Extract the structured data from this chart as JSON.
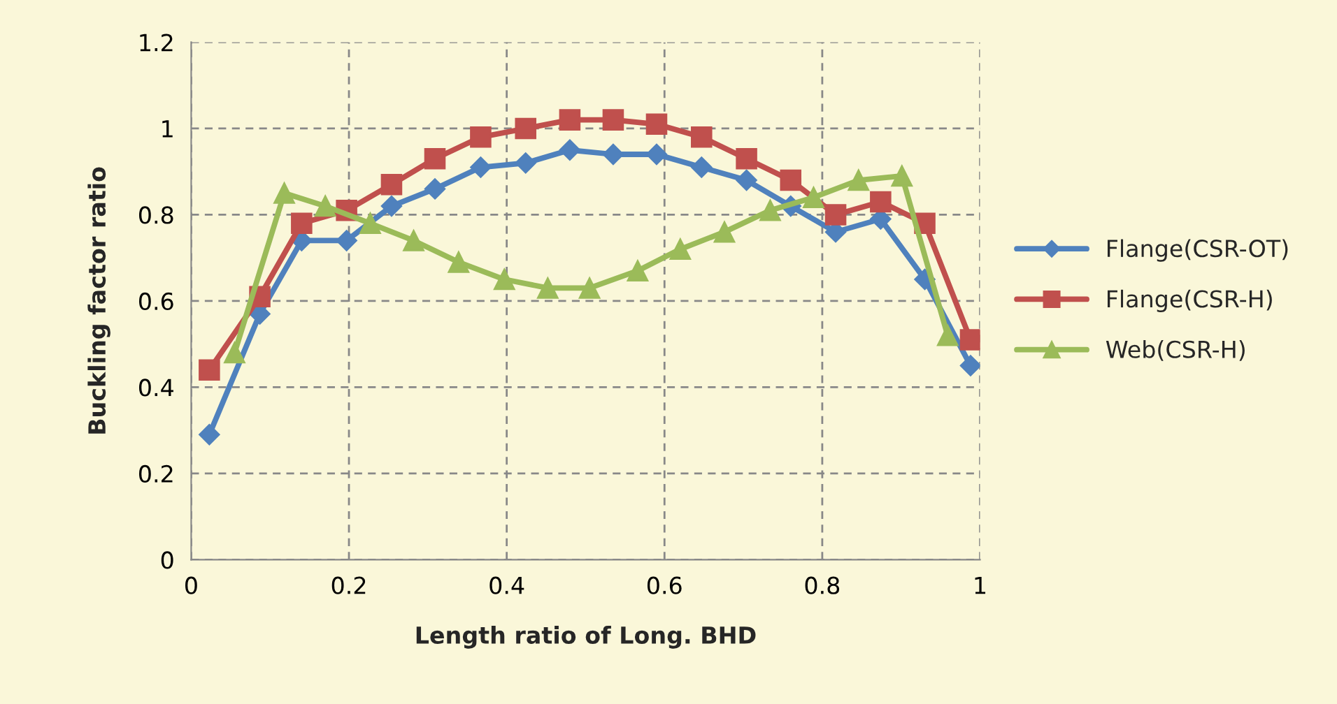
{
  "chart_data": {
    "type": "line",
    "xlabel": "Length ratio of Long. BHD",
    "ylabel": "Buckling factor ratio",
    "xlim": [
      0,
      1
    ],
    "xticks": [
      0,
      0.2,
      0.4,
      0.6,
      0.8,
      1
    ],
    "ylim": [
      0,
      1.2
    ],
    "yticks": [
      0,
      0.2,
      0.4,
      0.6,
      0.8,
      1,
      1.2
    ],
    "grid": true,
    "legend": "right",
    "line_style": "solid",
    "series": [
      {
        "name": "Flange(CSR-OT)",
        "color": "#4f81bd",
        "marker": "diamond",
        "x": [
          0.023,
          0.087,
          0.14,
          0.197,
          0.254,
          0.309,
          0.367,
          0.424,
          0.48,
          0.535,
          0.59,
          0.647,
          0.704,
          0.76,
          0.817,
          0.874,
          0.93,
          0.988
        ],
        "values": [
          0.29,
          0.57,
          0.74,
          0.74,
          0.82,
          0.86,
          0.91,
          0.92,
          0.95,
          0.94,
          0.94,
          0.91,
          0.88,
          0.82,
          0.76,
          0.79,
          0.65,
          0.45
        ]
      },
      {
        "name": "Flange(CSR-H)",
        "color": "#c0504d",
        "marker": "square",
        "x": [
          0.023,
          0.087,
          0.14,
          0.197,
          0.254,
          0.309,
          0.367,
          0.424,
          0.48,
          0.535,
          0.59,
          0.647,
          0.704,
          0.76,
          0.817,
          0.874,
          0.93,
          0.988
        ],
        "values": [
          0.44,
          0.61,
          0.78,
          0.81,
          0.87,
          0.93,
          0.98,
          1.0,
          1.02,
          1.02,
          1.01,
          0.98,
          0.93,
          0.88,
          0.8,
          0.83,
          0.78,
          0.51
        ]
      },
      {
        "name": "Web(CSR-H)",
        "color": "#9bbb59",
        "marker": "triangle",
        "x": [
          0.055,
          0.118,
          0.17,
          0.227,
          0.282,
          0.339,
          0.397,
          0.452,
          0.505,
          0.566,
          0.62,
          0.676,
          0.734,
          0.789,
          0.846,
          0.901,
          0.959
        ],
        "values": [
          0.48,
          0.85,
          0.82,
          0.78,
          0.74,
          0.69,
          0.65,
          0.63,
          0.63,
          0.67,
          0.72,
          0.76,
          0.81,
          0.84,
          0.88,
          0.89,
          0.52
        ]
      }
    ]
  }
}
